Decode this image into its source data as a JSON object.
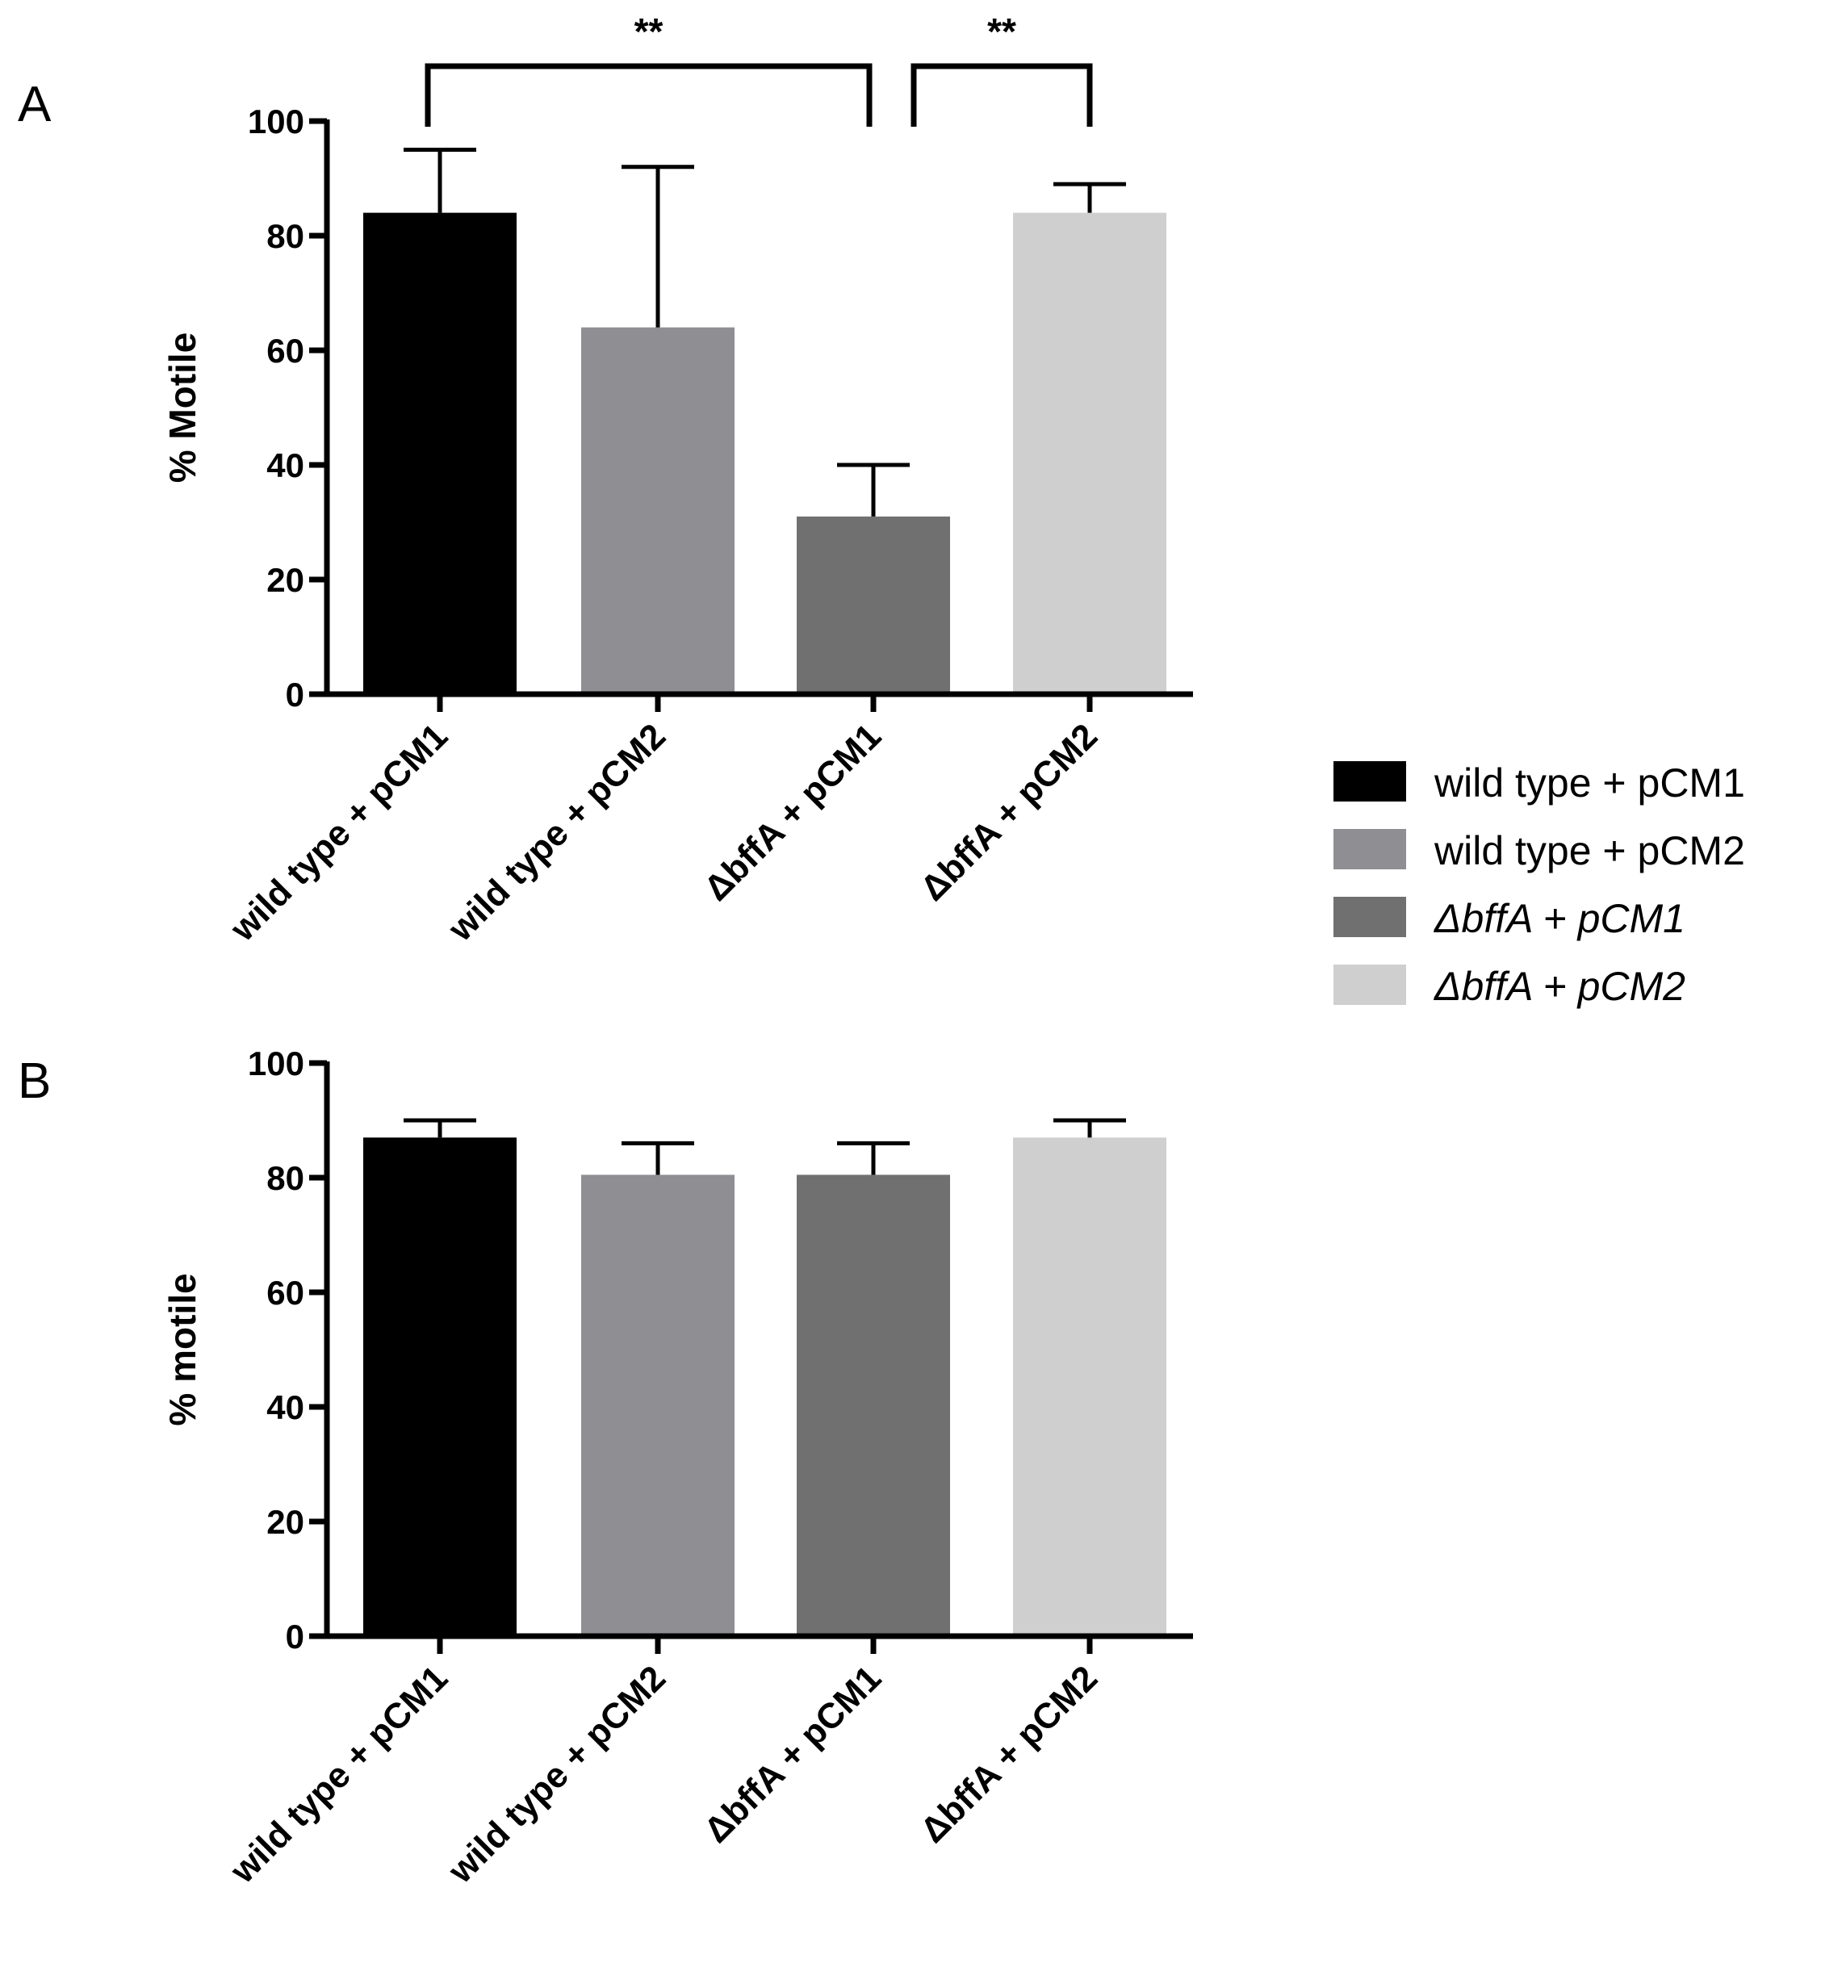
{
  "legend": {
    "entries": [
      {
        "label": "wild type + pCM1",
        "color": "#000000",
        "italic": false
      },
      {
        "label": "wild type + pCM2",
        "color": "#8f8e93",
        "italic": false
      },
      {
        "label": "ΔbffA + pCM1",
        "color": "#707070",
        "italic": true
      },
      {
        "label": "ΔbffA + pCM2",
        "color": "#cfcfcf",
        "italic": true
      }
    ]
  },
  "chart_data": [
    {
      "type": "bar",
      "panel": "A",
      "title": "",
      "xlabel": "",
      "ylabel": "% Motile",
      "ylim": [
        0,
        100
      ],
      "yticks": [
        0,
        20,
        40,
        60,
        80,
        100
      ],
      "categories": [
        "wild type + pCM1",
        "wild type + pCM2",
        "ΔbffA + pCM1",
        "ΔbffA + pCM2"
      ],
      "values": [
        84,
        64,
        31,
        84
      ],
      "errors": [
        11,
        28,
        9,
        5
      ],
      "colors": [
        "#000000",
        "#8f8e93",
        "#707070",
        "#cfcfcf"
      ],
      "significance": [
        {
          "from": 0,
          "to": 2,
          "label": "**"
        },
        {
          "from": 2,
          "to": 3,
          "label": "**"
        }
      ],
      "grid": false
    },
    {
      "type": "bar",
      "panel": "B",
      "title": "",
      "xlabel": "",
      "ylabel": "% motile",
      "ylim": [
        0,
        100
      ],
      "yticks": [
        0,
        20,
        40,
        60,
        80,
        100
      ],
      "categories": [
        "wild type + pCM1",
        "wild type + pCM2",
        "ΔbffA + pCM1",
        "ΔbffA + pCM2"
      ],
      "values": [
        87,
        80.5,
        80.5,
        87
      ],
      "errors": [
        3,
        5.5,
        5.5,
        3
      ],
      "colors": [
        "#000000",
        "#8f8e93",
        "#707070",
        "#cfcfcf"
      ],
      "significance": [],
      "grid": false
    }
  ]
}
